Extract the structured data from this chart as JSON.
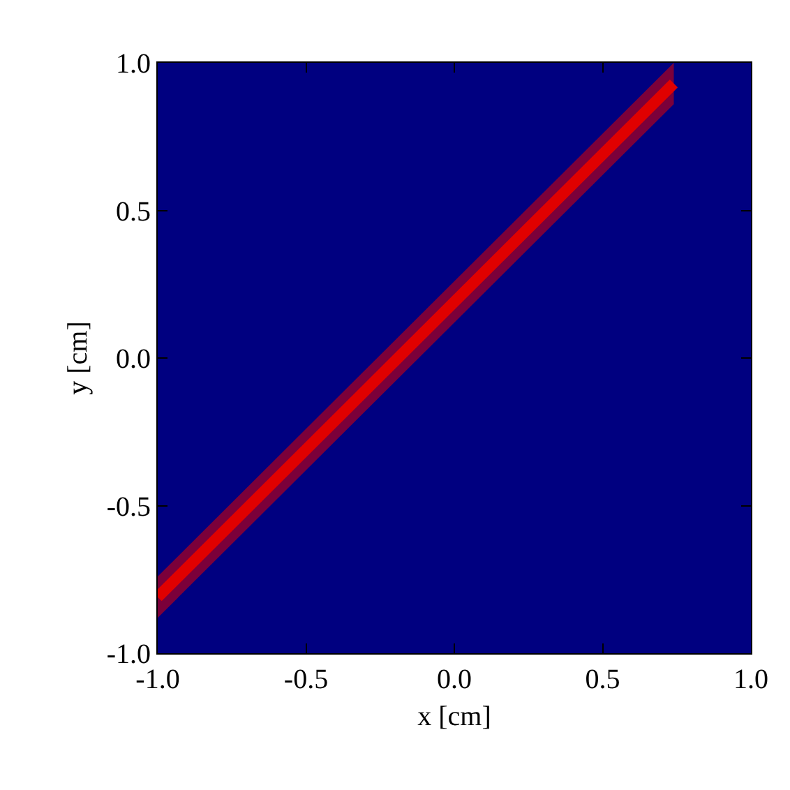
{
  "chart_data": {
    "type": "line",
    "xlabel": "x [cm]",
    "ylabel": "y [cm]",
    "series": [
      {
        "color": "#e00000",
        "x": [
          -1.0,
          0.74
        ],
        "values": [
          -0.81,
          0.93
        ],
        "lower": [
          -0.88,
          0.86
        ],
        "upper": [
          -0.74,
          1.0
        ]
      }
    ],
    "xlim": [
      -1.0,
      1.0
    ],
    "ylim": [
      -1.0,
      1.0
    ],
    "xticks": [
      {
        "value": -1,
        "label": "-1.0"
      },
      {
        "value": -0.5,
        "label": "-0.5"
      },
      {
        "value": 0,
        "label": "0.0"
      },
      {
        "value": 0.5,
        "label": "0.5"
      },
      {
        "value": 1,
        "label": "1.0"
      }
    ],
    "yticks": [
      {
        "value": -1,
        "label": "-1.0"
      },
      {
        "value": -0.5,
        "label": "-0.5"
      },
      {
        "value": 0,
        "label": "0.0"
      },
      {
        "value": 0.5,
        "label": "0.5"
      },
      {
        "value": 1,
        "label": "1.0"
      }
    ],
    "grid": false,
    "marker": "none",
    "line_style": "solid"
  }
}
